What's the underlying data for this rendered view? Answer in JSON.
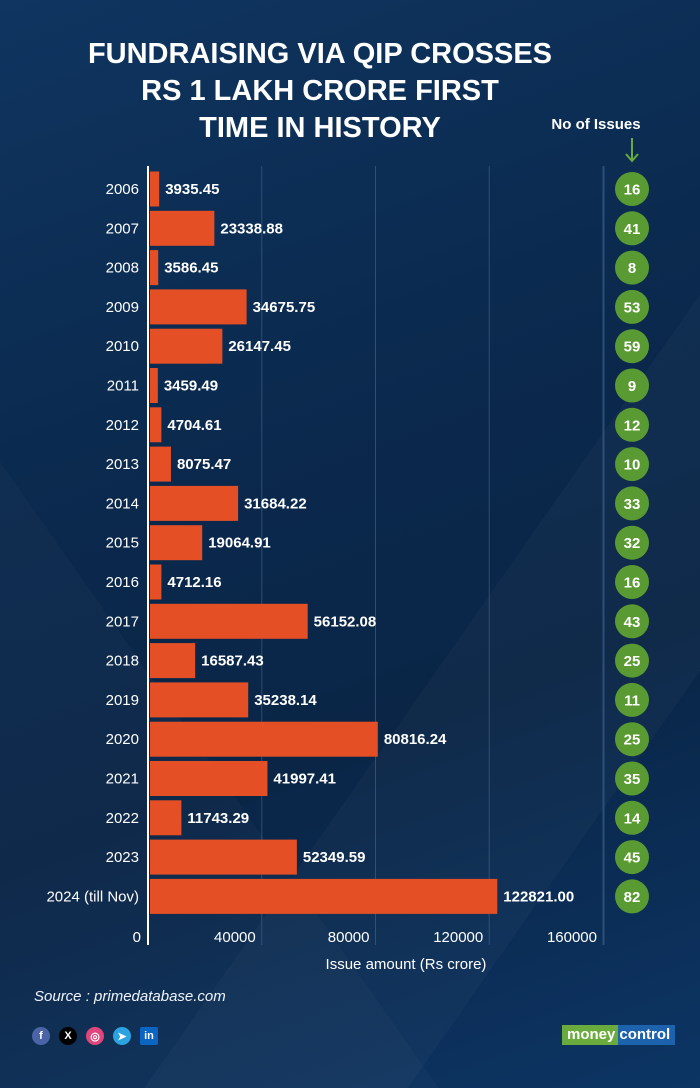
{
  "title_lines": [
    "FUNDRAISING VIA QIP CROSSES",
    "RS 1 LAKH CRORE FIRST",
    "TIME IN HISTORY"
  ],
  "issues_header": "No of Issues",
  "source": "Source : primedatabase.com",
  "social": [
    {
      "icon": "facebook-icon",
      "glyph": "f",
      "color": "#4a64a6"
    },
    {
      "icon": "x-twitter-icon",
      "glyph": "X",
      "color": "#000000"
    },
    {
      "icon": "instagram-icon",
      "glyph": "◎",
      "color": "#e0457b"
    },
    {
      "icon": "telegram-icon",
      "glyph": "➤",
      "color": "#2aa3e0"
    },
    {
      "icon": "linkedin-icon",
      "glyph": "in",
      "color": "#0a66c2"
    }
  ],
  "logo": {
    "part1": "money",
    "part2": "control"
  },
  "colors": {
    "bar": "#e44f26",
    "circle": "#5a9a32",
    "axis": "#ffffff",
    "grid": "#3b5f88"
  },
  "chart_data": {
    "type": "bar",
    "orientation": "horizontal",
    "title": "FUNDRAISING VIA QIP CROSSES RS 1 LAKH CRORE FIRST TIME IN HISTORY",
    "xlabel": "Issue amount (Rs crore)",
    "ylabel": "",
    "xlim": [
      0,
      160000
    ],
    "xticks": [
      0,
      40000,
      80000,
      120000,
      160000
    ],
    "xtick_labels": [
      "0",
      "40000",
      "80000",
      "120000",
      "160000"
    ],
    "grid": true,
    "categories": [
      "2006",
      "2007",
      "2008",
      "2009",
      "2010",
      "2011",
      "2012",
      "2013",
      "2014",
      "2015",
      "2016",
      "2017",
      "2018",
      "2019",
      "2020",
      "2021",
      "2022",
      "2023",
      "2024 (till Nov)"
    ],
    "series": [
      {
        "name": "Issue amount (Rs crore)",
        "values": [
          3935.45,
          23338.88,
          3586.45,
          34675.75,
          26147.45,
          3459.49,
          4704.61,
          8075.47,
          31684.22,
          19064.91,
          4712.16,
          56152.08,
          16587.43,
          35238.14,
          80816.24,
          41997.41,
          11743.29,
          52349.59,
          122821.0
        ],
        "labels": [
          "3935.45",
          "23338.88",
          "3586.45",
          "34675.75",
          "26147.45",
          "3459.49",
          "4704.61",
          "8075.47",
          "31684.22",
          "19064.91",
          "4712.16",
          "56152.08",
          "16587.43",
          "35238.14",
          "80816.24",
          "41997.41",
          "11743.29",
          "52349.59",
          "122821.00"
        ]
      },
      {
        "name": "No of Issues",
        "values": [
          16,
          41,
          8,
          53,
          59,
          9,
          12,
          10,
          33,
          32,
          16,
          43,
          25,
          11,
          25,
          35,
          14,
          45,
          82
        ]
      }
    ]
  }
}
